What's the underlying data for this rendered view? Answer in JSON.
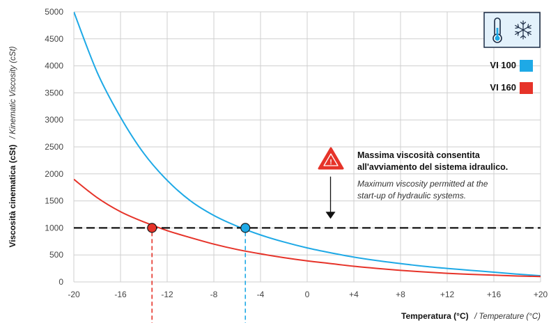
{
  "chart_data": {
    "type": "line",
    "x": [
      -20,
      -18,
      -16,
      -14,
      -12,
      -10,
      -8,
      -6,
      -4,
      -2,
      0,
      2,
      4,
      6,
      8,
      10,
      12,
      14,
      16,
      18,
      20
    ],
    "series": [
      {
        "name": "VI 100",
        "color": "#1ea9e6",
        "values": [
          5000,
          3880,
          3050,
          2380,
          1880,
          1500,
          1230,
          1030,
          870,
          740,
          630,
          540,
          460,
          395,
          340,
          290,
          250,
          215,
          180,
          145,
          115
        ]
      },
      {
        "name": "VI 160",
        "color": "#e63329",
        "values": [
          1900,
          1560,
          1300,
          1110,
          950,
          820,
          700,
          600,
          520,
          450,
          390,
          340,
          290,
          250,
          215,
          185,
          160,
          140,
          125,
          110,
          100
        ]
      }
    ],
    "xlabel": "Temperatura (°C)",
    "xlabel_en": "/ Temperature (°C)",
    "ylabel": "Viscosità cinematica (cSt)",
    "ylabel_en": "/ Kinematic Viscosity (cSt)",
    "xlim": [
      -20,
      20
    ],
    "ylim": [
      0,
      5000
    ],
    "x_ticks": [
      -20,
      -16,
      -12,
      -8,
      -4,
      0,
      4,
      8,
      12,
      16,
      20
    ],
    "x_tick_labels": [
      "-20",
      "-16",
      "-12",
      "-8",
      "-4",
      "0",
      "+4",
      "+8",
      "+12",
      "+16",
      "+20"
    ],
    "y_ticks": [
      0,
      500,
      1000,
      1500,
      2000,
      2500,
      3000,
      3500,
      4000,
      4500,
      5000
    ],
    "grid": true,
    "legend_position": "top-right",
    "threshold": {
      "y": 1000,
      "color": "#111111"
    },
    "markers": [
      {
        "series": "VI 160",
        "x": -13.3,
        "y": 1000,
        "color": "#e63329"
      },
      {
        "series": "VI 100",
        "x": -5.3,
        "y": 1000,
        "color": "#1ea9e6"
      }
    ],
    "annotation": {
      "title_line1": "Massima viscosità consentita",
      "title_line2": "all'avviamento del sistema idraulico.",
      "subtitle_line1": "Maximum viscosity permitted at the",
      "subtitle_line2": "start-up of hydraulic systems.",
      "x": 2,
      "arrow_from_y": 1950,
      "arrow_to_y": 1170,
      "warning_icon": "warning-triangle-icon"
    },
    "legend_icons": [
      "thermometer-icon",
      "snowflake-icon"
    ]
  }
}
